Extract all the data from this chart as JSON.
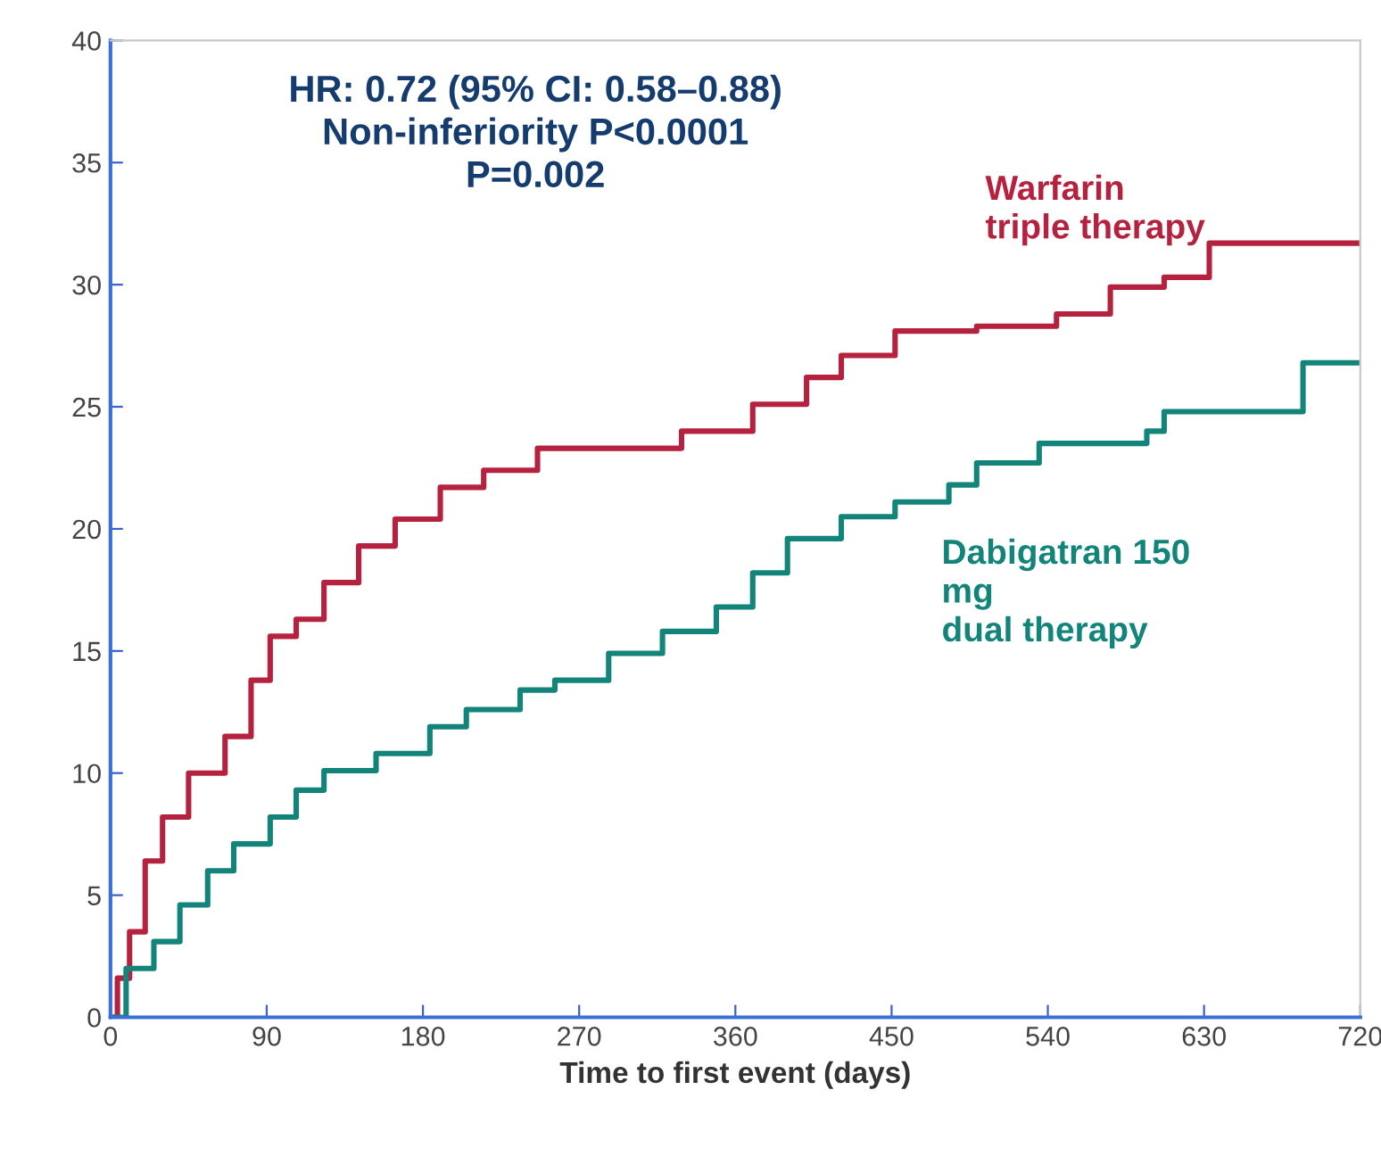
{
  "chart_data": {
    "type": "step",
    "xlabel": "Time to first event (days)",
    "xlim": [
      0,
      720
    ],
    "xticks": [
      0,
      90,
      180,
      270,
      360,
      450,
      540,
      630,
      720
    ],
    "ylim": [
      0,
      40
    ],
    "yticks": [
      0,
      5,
      10,
      15,
      20,
      25,
      30,
      35,
      40
    ],
    "grid": false,
    "legend": false,
    "line_style": "solid",
    "marker": "none",
    "annotations": [
      "HR: 0.72 (95% CI: 0.58–0.88)\nNon-inferiority P<0.0001\nP=0.002"
    ],
    "series": [
      {
        "name": "Warfarin\ntriple therapy",
        "color": "#b5223f",
        "x": [
          0,
          4,
          11,
          20,
          30,
          45,
          66,
          81,
          92,
          107,
          123,
          143,
          164,
          190,
          215,
          246,
          277,
          329,
          370,
          401,
          421,
          452,
          499,
          545,
          576,
          607,
          633,
          720
        ],
        "values": [
          0,
          1.6,
          3.5,
          6.4,
          8.2,
          10,
          11.5,
          13.8,
          15.6,
          16.3,
          17.8,
          19.3,
          20.4,
          21.7,
          22.4,
          23.3,
          23.3,
          24,
          25.1,
          26.2,
          27.1,
          28.1,
          28.3,
          28.8,
          29.9,
          30.3,
          31.7,
          31.7
        ]
      },
      {
        "name": "Dabigatran 150\nmg\ndual therapy",
        "color": "#13847a",
        "x": [
          0,
          9,
          25,
          40,
          56,
          71,
          92,
          107,
          123,
          153,
          184,
          205,
          236,
          256,
          287,
          318,
          349,
          370,
          390,
          421,
          452,
          483,
          499,
          535,
          597,
          607,
          687,
          720
        ],
        "values": [
          0,
          2,
          3.1,
          4.6,
          6,
          7.1,
          8.2,
          9.3,
          10.1,
          10.8,
          11.9,
          12.6,
          13.4,
          13.8,
          14.9,
          15.8,
          16.8,
          18.2,
          19.6,
          20.5,
          21.1,
          21.8,
          22.7,
          23.5,
          24,
          24.8,
          26.8,
          26.8
        ]
      }
    ]
  }
}
